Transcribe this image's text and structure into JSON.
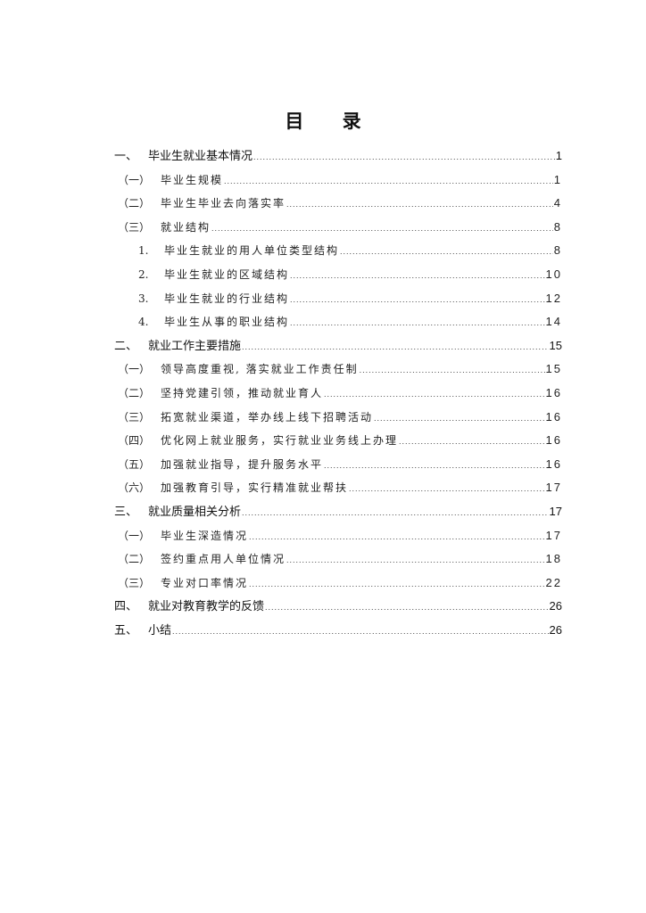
{
  "title": "目 录",
  "entries": [
    {
      "level": 1,
      "num": "一、",
      "label": "毕业生就业基本情况",
      "page": "1"
    },
    {
      "level": 2,
      "num": "（一）",
      "label": "毕业生规模",
      "page": "1"
    },
    {
      "level": 2,
      "num": "（二）",
      "label": "毕业生毕业去向落实率",
      "page": "4"
    },
    {
      "level": 2,
      "num": "（三）",
      "label": "就业结构",
      "page": "8"
    },
    {
      "level": 3,
      "num": "1.",
      "label": "毕业生就业的用人单位类型结构",
      "page": "8"
    },
    {
      "level": 3,
      "num": "2.",
      "label": "毕业生就业的区域结构",
      "page": "10"
    },
    {
      "level": 3,
      "num": "3.",
      "label": "毕业生就业的行业结构",
      "page": "12"
    },
    {
      "level": 3,
      "num": "4.",
      "label": "毕业生从事的职业结构",
      "page": "14"
    },
    {
      "level": 1,
      "num": "二、",
      "label": "就业工作主要措施",
      "page": "15"
    },
    {
      "level": 2,
      "num": "（一）",
      "label": "领导高度重视, 落实就业工作责任制",
      "page": "15"
    },
    {
      "level": 2,
      "num": "（二）",
      "label": "坚持党建引领，推动就业育人",
      "page": "16"
    },
    {
      "level": 2,
      "num": "（三）",
      "label": "拓宽就业渠道，举办线上线下招聘活动",
      "page": "16"
    },
    {
      "level": 2,
      "num": "（四）",
      "label": "优化网上就业服务，实行就业业务线上办理",
      "page": "16"
    },
    {
      "level": 2,
      "num": "（五）",
      "label": "加强就业指导，提升服务水平",
      "page": "16"
    },
    {
      "level": 2,
      "num": "（六）",
      "label": "加强教育引导，实行精准就业帮扶",
      "page": "17"
    },
    {
      "level": 1,
      "num": "三、",
      "label": "就业质量相关分析",
      "page": "17"
    },
    {
      "level": 2,
      "num": "（一）",
      "label": "毕业生深造情况",
      "page": "17"
    },
    {
      "level": 2,
      "num": "（二）",
      "label": "签约重点用人单位情况",
      "page": "18"
    },
    {
      "level": 2,
      "num": "（三）",
      "label": "专业对口率情况",
      "page": "22"
    },
    {
      "level": 1,
      "num": "四、",
      "label": "就业对教育教学的反馈",
      "page": "26"
    },
    {
      "level": 1,
      "num": "五、",
      "label": "小结",
      "page": "26"
    }
  ]
}
